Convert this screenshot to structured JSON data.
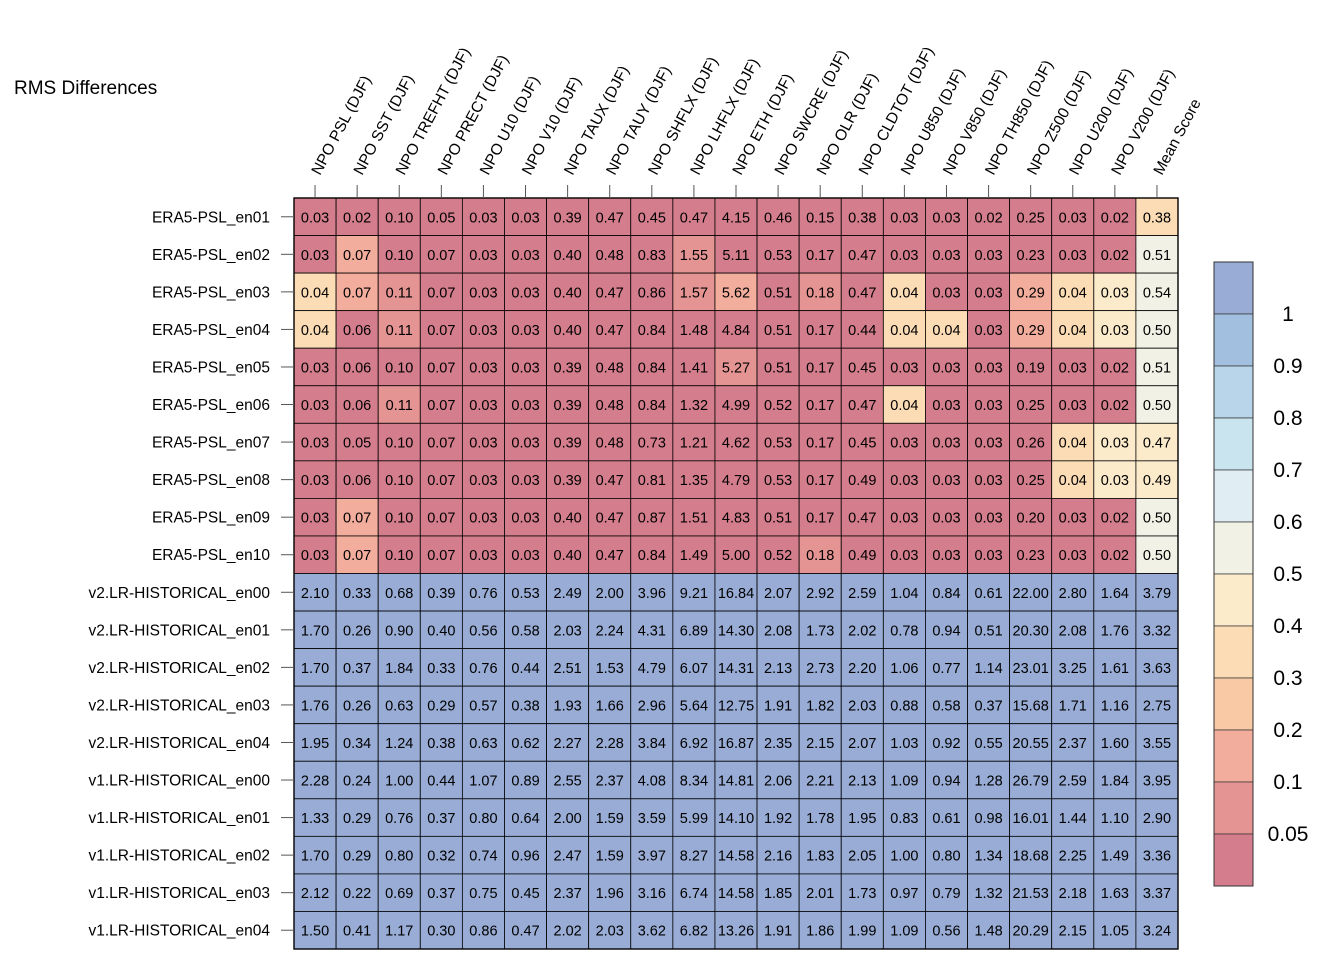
{
  "chart_data": {
    "type": "heatmap",
    "title": "RMS Differences",
    "columns": [
      "NPO PSL (DJF)",
      "NPO SST (DJF)",
      "NPO TREFHT (DJF)",
      "NPO PRECT (DJF)",
      "NPO U10 (DJF)",
      "NPO V10 (DJF)",
      "NPO TAUX (DJF)",
      "NPO TAUY (DJF)",
      "NPO SHFLX (DJF)",
      "NPO LHFLX (DJF)",
      "NPO ETH (DJF)",
      "NPO SWCRE (DJF)",
      "NPO OLR (DJF)",
      "NPO CLDTOT (DJF)",
      "NPO U850 (DJF)",
      "NPO V850 (DJF)",
      "NPO TH850 (DJF)",
      "NPO Z500 (DJF)",
      "NPO U200 (DJF)",
      "NPO V200 (DJF)",
      "Mean Score"
    ],
    "rows": [
      "ERA5-PSL_en01",
      "ERA5-PSL_en02",
      "ERA5-PSL_en03",
      "ERA5-PSL_en04",
      "ERA5-PSL_en05",
      "ERA5-PSL_en06",
      "ERA5-PSL_en07",
      "ERA5-PSL_en08",
      "ERA5-PSL_en09",
      "ERA5-PSL_en10",
      "v2.LR-HISTORICAL_en00",
      "v2.LR-HISTORICAL_en01",
      "v2.LR-HISTORICAL_en02",
      "v2.LR-HISTORICAL_en03",
      "v2.LR-HISTORICAL_en04",
      "v1.LR-HISTORICAL_en00",
      "v1.LR-HISTORICAL_en01",
      "v1.LR-HISTORICAL_en02",
      "v1.LR-HISTORICAL_en03",
      "v1.LR-HISTORICAL_en04"
    ],
    "values": [
      [
        "0.03",
        "0.02",
        "0.10",
        "0.05",
        "0.03",
        "0.03",
        "0.39",
        "0.47",
        "0.45",
        "0.47",
        "4.15",
        "0.46",
        "0.15",
        "0.38",
        "0.03",
        "0.03",
        "0.02",
        "0.25",
        "0.03",
        "0.02",
        "0.38"
      ],
      [
        "0.03",
        "0.07",
        "0.10",
        "0.07",
        "0.03",
        "0.03",
        "0.40",
        "0.48",
        "0.83",
        "1.55",
        "5.11",
        "0.53",
        "0.17",
        "0.47",
        "0.03",
        "0.03",
        "0.03",
        "0.23",
        "0.03",
        "0.02",
        "0.51"
      ],
      [
        "0.04",
        "0.07",
        "0.11",
        "0.07",
        "0.03",
        "0.03",
        "0.40",
        "0.47",
        "0.86",
        "1.57",
        "5.62",
        "0.51",
        "0.18",
        "0.47",
        "0.04",
        "0.03",
        "0.03",
        "0.29",
        "0.04",
        "0.03",
        "0.54"
      ],
      [
        "0.04",
        "0.06",
        "0.11",
        "0.07",
        "0.03",
        "0.03",
        "0.40",
        "0.47",
        "0.84",
        "1.48",
        "4.84",
        "0.51",
        "0.17",
        "0.44",
        "0.04",
        "0.04",
        "0.03",
        "0.29",
        "0.04",
        "0.03",
        "0.50"
      ],
      [
        "0.03",
        "0.06",
        "0.10",
        "0.07",
        "0.03",
        "0.03",
        "0.39",
        "0.48",
        "0.84",
        "1.41",
        "5.27",
        "0.51",
        "0.17",
        "0.45",
        "0.03",
        "0.03",
        "0.03",
        "0.19",
        "0.03",
        "0.02",
        "0.51"
      ],
      [
        "0.03",
        "0.06",
        "0.11",
        "0.07",
        "0.03",
        "0.03",
        "0.39",
        "0.48",
        "0.84",
        "1.32",
        "4.99",
        "0.52",
        "0.17",
        "0.47",
        "0.04",
        "0.03",
        "0.03",
        "0.25",
        "0.03",
        "0.02",
        "0.50"
      ],
      [
        "0.03",
        "0.05",
        "0.10",
        "0.07",
        "0.03",
        "0.03",
        "0.39",
        "0.48",
        "0.73",
        "1.21",
        "4.62",
        "0.53",
        "0.17",
        "0.45",
        "0.03",
        "0.03",
        "0.03",
        "0.26",
        "0.04",
        "0.03",
        "0.47"
      ],
      [
        "0.03",
        "0.06",
        "0.10",
        "0.07",
        "0.03",
        "0.03",
        "0.39",
        "0.47",
        "0.81",
        "1.35",
        "4.79",
        "0.53",
        "0.17",
        "0.49",
        "0.03",
        "0.03",
        "0.03",
        "0.25",
        "0.04",
        "0.03",
        "0.49"
      ],
      [
        "0.03",
        "0.07",
        "0.10",
        "0.07",
        "0.03",
        "0.03",
        "0.40",
        "0.47",
        "0.87",
        "1.51",
        "4.83",
        "0.51",
        "0.17",
        "0.47",
        "0.03",
        "0.03",
        "0.03",
        "0.20",
        "0.03",
        "0.02",
        "0.50"
      ],
      [
        "0.03",
        "0.07",
        "0.10",
        "0.07",
        "0.03",
        "0.03",
        "0.40",
        "0.47",
        "0.84",
        "1.49",
        "5.00",
        "0.52",
        "0.18",
        "0.49",
        "0.03",
        "0.03",
        "0.03",
        "0.23",
        "0.03",
        "0.02",
        "0.50"
      ],
      [
        "2.10",
        "0.33",
        "0.68",
        "0.39",
        "0.76",
        "0.53",
        "2.49",
        "2.00",
        "3.96",
        "9.21",
        "16.84",
        "2.07",
        "2.92",
        "2.59",
        "1.04",
        "0.84",
        "0.61",
        "22.00",
        "2.80",
        "1.64",
        "3.79"
      ],
      [
        "1.70",
        "0.26",
        "0.90",
        "0.40",
        "0.56",
        "0.58",
        "2.03",
        "2.24",
        "4.31",
        "6.89",
        "14.30",
        "2.08",
        "1.73",
        "2.02",
        "0.78",
        "0.94",
        "0.51",
        "20.30",
        "2.08",
        "1.76",
        "3.32"
      ],
      [
        "1.70",
        "0.37",
        "1.84",
        "0.33",
        "0.76",
        "0.44",
        "2.51",
        "1.53",
        "4.79",
        "6.07",
        "14.31",
        "2.13",
        "2.73",
        "2.20",
        "1.06",
        "0.77",
        "1.14",
        "23.01",
        "3.25",
        "1.61",
        "3.63"
      ],
      [
        "1.76",
        "0.26",
        "0.63",
        "0.29",
        "0.57",
        "0.38",
        "1.93",
        "1.66",
        "2.96",
        "5.64",
        "12.75",
        "1.91",
        "1.82",
        "2.03",
        "0.88",
        "0.58",
        "0.37",
        "15.68",
        "1.71",
        "1.16",
        "2.75"
      ],
      [
        "1.95",
        "0.34",
        "1.24",
        "0.38",
        "0.63",
        "0.62",
        "2.27",
        "2.28",
        "3.84",
        "6.92",
        "16.87",
        "2.35",
        "2.15",
        "2.07",
        "1.03",
        "0.92",
        "0.55",
        "20.55",
        "2.37",
        "1.60",
        "3.55"
      ],
      [
        "2.28",
        "0.24",
        "1.00",
        "0.44",
        "1.07",
        "0.89",
        "2.55",
        "2.37",
        "4.08",
        "8.34",
        "14.81",
        "2.06",
        "2.21",
        "2.13",
        "1.09",
        "0.94",
        "1.28",
        "26.79",
        "2.59",
        "1.84",
        "3.95"
      ],
      [
        "1.33",
        "0.29",
        "0.76",
        "0.37",
        "0.80",
        "0.64",
        "2.00",
        "1.59",
        "3.59",
        "5.99",
        "14.10",
        "1.92",
        "1.78",
        "1.95",
        "0.83",
        "0.61",
        "0.98",
        "16.01",
        "1.44",
        "1.10",
        "2.90"
      ],
      [
        "1.70",
        "0.29",
        "0.80",
        "0.32",
        "0.74",
        "0.96",
        "2.47",
        "1.59",
        "3.97",
        "8.27",
        "14.58",
        "2.16",
        "1.83",
        "2.05",
        "1.00",
        "0.80",
        "1.34",
        "18.68",
        "2.25",
        "1.49",
        "3.36"
      ],
      [
        "2.12",
        "0.22",
        "0.69",
        "0.37",
        "0.75",
        "0.45",
        "2.37",
        "1.96",
        "3.16",
        "6.74",
        "14.58",
        "1.85",
        "2.01",
        "1.73",
        "0.97",
        "0.79",
        "1.32",
        "21.53",
        "2.18",
        "1.63",
        "3.37"
      ],
      [
        "1.50",
        "0.41",
        "1.17",
        "0.30",
        "0.86",
        "0.47",
        "2.02",
        "2.03",
        "3.62",
        "6.82",
        "13.26",
        "1.91",
        "1.86",
        "1.99",
        "1.09",
        "0.56",
        "1.48",
        "20.29",
        "2.15",
        "1.05",
        "3.24"
      ]
    ],
    "colorbar": {
      "ticks": [
        "1",
        "0.9",
        "0.8",
        "0.7",
        "0.6",
        "0.5",
        "0.4",
        "0.3",
        "0.2",
        "0.1",
        "0.05"
      ],
      "colors": [
        "#d47d8c",
        "#e49492",
        "#f3ad9d",
        "#f9c8a4",
        "#fcdcb4",
        "#fbebcb",
        "#f1f1e6",
        "#e0eef4",
        "#c9e3ef",
        "#b8d5ea",
        "#a3bfdf",
        "#98acd5"
      ],
      "thresholds": [
        0.05,
        0.1,
        0.2,
        0.3,
        0.4,
        0.5,
        0.6,
        0.7,
        0.8,
        0.9,
        1
      ]
    }
  }
}
